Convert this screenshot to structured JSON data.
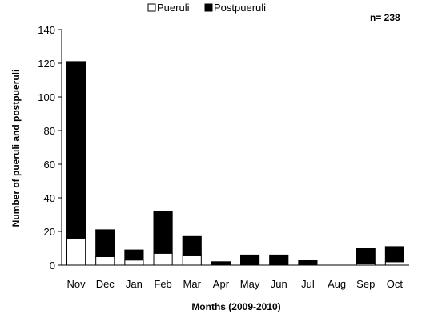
{
  "chart_data": {
    "type": "bar",
    "stacked": true,
    "title": "",
    "xlabel": "Months (2009-2010)",
    "ylabel": "Number of pueruli and postpueruli",
    "ylim": [
      0,
      140
    ],
    "yticks": [
      0,
      20,
      40,
      60,
      80,
      100,
      120,
      140
    ],
    "grid": false,
    "legend_position": "top",
    "annotation": "n= 238",
    "categories": [
      "Nov",
      "Dec",
      "Jan",
      "Feb",
      "Mar",
      "Apr",
      "May",
      "Jun",
      "Jul",
      "Aug",
      "Sep",
      "Oct"
    ],
    "series": [
      {
        "name": "Pueruli",
        "color": "#ffffff",
        "values": [
          16,
          5,
          3,
          7,
          6,
          0,
          0,
          0,
          0,
          0,
          1,
          2
        ]
      },
      {
        "name": "Postpueruli",
        "color": "#000000",
        "values": [
          105,
          16,
          6,
          25,
          11,
          2,
          6,
          6,
          3,
          0,
          9,
          9
        ]
      }
    ]
  }
}
